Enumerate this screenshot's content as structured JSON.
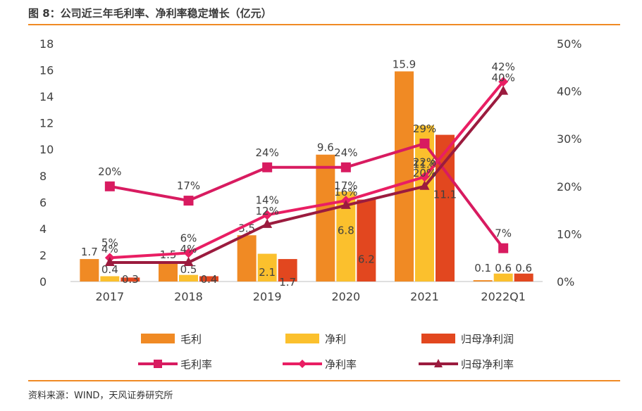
{
  "header": {
    "title": "图 8：公司近三年毛利率、净利率稳定增长（亿元）"
  },
  "footer": {
    "source": "资料来源：WIND，天风证券研究所"
  },
  "colors": {
    "gross": "#f08a24",
    "net": "#fbc02d",
    "parent": "#e2471f",
    "gross_rate": "#d81b60",
    "net_rate": "#e91e63",
    "parent_rate": "#9b1b3e",
    "accent": "#f08a24"
  },
  "chart_data": {
    "type": "bar",
    "title": "公司近三年毛利率、净利率稳定增长（亿元）",
    "categories": [
      "2017",
      "2018",
      "2019",
      "2020",
      "2021",
      "2022Q1"
    ],
    "ylim": [
      0,
      18
    ],
    "yticks": [
      "0",
      "2",
      "4",
      "6",
      "8",
      "10",
      "12",
      "14",
      "16",
      "18"
    ],
    "y2lim": [
      0,
      50
    ],
    "y2ticks": [
      "0%",
      "10%",
      "20%",
      "30%",
      "40%",
      "50%"
    ],
    "series": [
      {
        "name": "毛利",
        "kind": "bar",
        "values": [
          1.7,
          1.5,
          3.5,
          9.6,
          15.9,
          0.1
        ],
        "labels": [
          "1.7",
          "1.5",
          "3.5",
          "9.6",
          "15.9",
          "0.1"
        ]
      },
      {
        "name": "净利",
        "kind": "bar",
        "values": [
          0.4,
          0.5,
          2.1,
          6.8,
          11.8,
          0.6
        ],
        "labels": [
          "0.4",
          "0.5",
          "2.1",
          "6.8",
          "11.8",
          "0.6"
        ]
      },
      {
        "name": "归母净利润",
        "kind": "bar",
        "values": [
          0.3,
          0.4,
          1.7,
          6.2,
          11.1,
          0.6
        ],
        "labels": [
          "0.3",
          "0.4",
          "1.7",
          "6.2",
          "11.1",
          "0.6"
        ]
      }
    ],
    "rate_series": [
      {
        "name": "毛利率",
        "marker": "square",
        "values": [
          20,
          17,
          24,
          24,
          29,
          7
        ],
        "labels": [
          "20%",
          "17%",
          "24%",
          "24%",
          "29%",
          "7%"
        ]
      },
      {
        "name": "净利率",
        "marker": "diamond",
        "values": [
          5,
          6,
          14,
          17,
          22,
          42
        ],
        "labels": [
          "5%",
          "6%",
          "14%",
          "17%",
          "22%",
          "42%"
        ]
      },
      {
        "name": "归母净利率",
        "marker": "triangle",
        "values": [
          4,
          4,
          12,
          16,
          20,
          40
        ],
        "labels": [
          "4%",
          "4%",
          "12%",
          "16%",
          "20%",
          "40%"
        ]
      }
    ],
    "legend": [
      {
        "name": "毛利",
        "kind": "bar",
        "color": "#f08a24"
      },
      {
        "name": "净利",
        "kind": "bar",
        "color": "#fbc02d"
      },
      {
        "name": "归母净利润",
        "kind": "bar",
        "color": "#e2471f"
      },
      {
        "name": "毛利率",
        "kind": "line-square",
        "color": "#d81b60"
      },
      {
        "name": "净利率",
        "kind": "line-diamond",
        "color": "#e91e63"
      },
      {
        "name": "归母净利率",
        "kind": "line-triangle",
        "color": "#9b1b3e"
      }
    ]
  }
}
